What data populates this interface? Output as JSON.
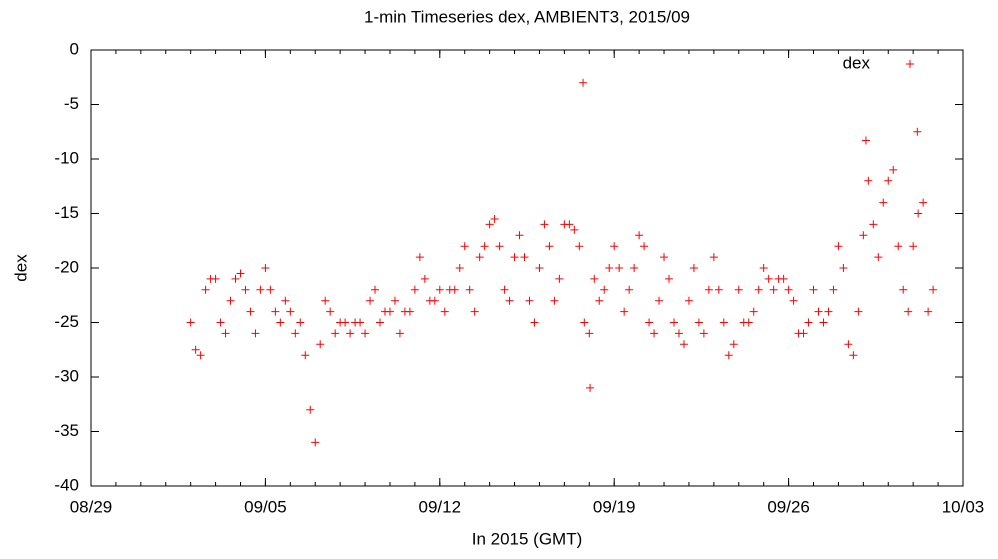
{
  "chart_data": {
    "type": "scatter",
    "title": "1-min Timeseries dex, AMBIENT3, 2015/09",
    "x_label": "In 2015 (GMT)",
    "y_label": "dex",
    "xlim": [
      "2015-08-29T00:00",
      "2015-10-03T00:00"
    ],
    "xticks": [
      {
        "value": "2015-08-29T00:00",
        "label": "08/29"
      },
      {
        "value": "2015-09-05T00:00",
        "label": "09/05"
      },
      {
        "value": "2015-09-12T00:00",
        "label": "09/12"
      },
      {
        "value": "2015-09-19T00:00",
        "label": "09/19"
      },
      {
        "value": "2015-09-26T00:00",
        "label": "09/26"
      },
      {
        "value": "2015-10-03T00:00",
        "label": "10/03"
      }
    ],
    "ylim": [
      -40,
      0
    ],
    "yticks": [
      0,
      -5,
      -10,
      -15,
      -20,
      -25,
      -30,
      -35,
      -40
    ],
    "legend": "upper right",
    "series": [
      {
        "name": "dex",
        "color": "#ff0000",
        "x": [
          "2015-09-02T00:00",
          "2015-09-02T04:48",
          "2015-09-02T09:36",
          "2015-09-02T14:24",
          "2015-09-02T19:12",
          "2015-09-03T00:00",
          "2015-09-03T04:48",
          "2015-09-03T09:36",
          "2015-09-03T14:24",
          "2015-09-03T19:12",
          "2015-09-04T00:00",
          "2015-09-04T04:48",
          "2015-09-04T09:36",
          "2015-09-04T14:24",
          "2015-09-04T19:12",
          "2015-09-05T00:00",
          "2015-09-05T04:48",
          "2015-09-05T09:36",
          "2015-09-05T14:24",
          "2015-09-05T19:12",
          "2015-09-06T00:00",
          "2015-09-06T04:48",
          "2015-09-06T09:36",
          "2015-09-06T14:24",
          "2015-09-06T19:12",
          "2015-09-07T00:00",
          "2015-09-07T04:48",
          "2015-09-07T09:36",
          "2015-09-07T14:24",
          "2015-09-07T19:12",
          "2015-09-08T00:00",
          "2015-09-08T04:48",
          "2015-09-08T09:36",
          "2015-09-08T14:24",
          "2015-09-08T19:12",
          "2015-09-09T00:00",
          "2015-09-09T04:48",
          "2015-09-09T09:36",
          "2015-09-09T14:24",
          "2015-09-09T19:12",
          "2015-09-10T00:00",
          "2015-09-10T04:48",
          "2015-09-10T09:36",
          "2015-09-10T14:24",
          "2015-09-10T19:12",
          "2015-09-11T00:00",
          "2015-09-11T04:48",
          "2015-09-11T09:36",
          "2015-09-11T14:24",
          "2015-09-11T19:12",
          "2015-09-12T00:00",
          "2015-09-12T04:48",
          "2015-09-12T09:36",
          "2015-09-12T14:24",
          "2015-09-12T19:12",
          "2015-09-13T00:00",
          "2015-09-13T04:48",
          "2015-09-13T09:36",
          "2015-09-13T14:24",
          "2015-09-13T19:12",
          "2015-09-14T00:00",
          "2015-09-14T04:48",
          "2015-09-14T09:36",
          "2015-09-14T14:24",
          "2015-09-14T19:12",
          "2015-09-15T00:00",
          "2015-09-15T04:48",
          "2015-09-15T09:36",
          "2015-09-15T14:24",
          "2015-09-15T19:12",
          "2015-09-16T00:00",
          "2015-09-16T04:48",
          "2015-09-16T09:36",
          "2015-09-16T14:24",
          "2015-09-16T19:12",
          "2015-09-17T00:00",
          "2015-09-17T04:48",
          "2015-09-17T09:36",
          "2015-09-17T14:24",
          "2015-09-17T19:12",
          "2015-09-18T00:00",
          "2015-09-18T04:48",
          "2015-09-18T09:36",
          "2015-09-18T14:24",
          "2015-09-18T19:12",
          "2015-09-19T00:00",
          "2015-09-19T04:48",
          "2015-09-19T09:36",
          "2015-09-19T14:24",
          "2015-09-19T19:12",
          "2015-09-20T00:00",
          "2015-09-20T04:48",
          "2015-09-20T09:36",
          "2015-09-20T14:24",
          "2015-09-20T19:12",
          "2015-09-21T00:00",
          "2015-09-21T04:48",
          "2015-09-21T09:36",
          "2015-09-21T14:24",
          "2015-09-21T19:12",
          "2015-09-22T00:00",
          "2015-09-22T04:48",
          "2015-09-22T09:36",
          "2015-09-22T14:24",
          "2015-09-22T19:12",
          "2015-09-23T00:00",
          "2015-09-23T04:48",
          "2015-09-23T09:36",
          "2015-09-23T14:24",
          "2015-09-23T19:12",
          "2015-09-24T00:00",
          "2015-09-24T04:48",
          "2015-09-24T09:36",
          "2015-09-24T14:24",
          "2015-09-24T19:12",
          "2015-09-25T00:00",
          "2015-09-25T04:48",
          "2015-09-25T09:36",
          "2015-09-25T14:24",
          "2015-09-25T19:12",
          "2015-09-26T00:00",
          "2015-09-26T04:48",
          "2015-09-26T09:36",
          "2015-09-26T14:24",
          "2015-09-26T19:12",
          "2015-09-27T00:00",
          "2015-09-27T04:48",
          "2015-09-27T09:36",
          "2015-09-27T14:24",
          "2015-09-27T19:12",
          "2015-09-28T00:00",
          "2015-09-28T04:48",
          "2015-09-28T09:36",
          "2015-09-28T14:24",
          "2015-09-28T19:12",
          "2015-09-29T00:00",
          "2015-09-29T04:48",
          "2015-09-29T09:36",
          "2015-09-29T14:24",
          "2015-09-29T19:12",
          "2015-09-30T00:00",
          "2015-09-30T04:48",
          "2015-09-30T09:36",
          "2015-09-30T14:24",
          "2015-09-30T19:12",
          "2015-10-01T00:00",
          "2015-10-01T04:48",
          "2015-10-01T09:36",
          "2015-10-01T14:24",
          "2015-10-01T19:12",
          "2015-09-17T18:00",
          "2015-10-01T04:00",
          "2015-09-29T02:30",
          "2015-09-18T00:45"
        ],
        "values": [
          -25,
          -27.5,
          -28,
          -22,
          -21,
          -21,
          -25,
          -26,
          -23,
          -21,
          -20.5,
          -22,
          -24,
          -26,
          -22,
          -20,
          -22,
          -24,
          -25,
          -23,
          -24,
          -26,
          -25,
          -28,
          -33,
          -36,
          -27,
          -23,
          -24,
          -26,
          -25,
          -25,
          -26,
          -25,
          -25,
          -26,
          -23,
          -22,
          -25,
          -24,
          -24,
          -23,
          -26,
          -24,
          -24,
          -22,
          -19,
          -21,
          -23,
          -23,
          -22,
          -24,
          -22,
          -22,
          -20,
          -18,
          -22,
          -24,
          -19,
          -18,
          -16,
          -15.5,
          -18,
          -22,
          -23,
          -19,
          -17,
          -19,
          -23,
          -25,
          -20,
          -16,
          -18,
          -23,
          -21,
          -16,
          -16,
          -16.5,
          -18,
          -25,
          -26,
          -21,
          -23,
          -22,
          -20,
          -18,
          -20,
          -24,
          -22,
          -20,
          -17,
          -18,
          -25,
          -26,
          -23,
          -19,
          -21,
          -25,
          -26,
          -27,
          -23,
          -20,
          -25,
          -26,
          -22,
          -19,
          -22,
          -25,
          -28,
          -27,
          -22,
          -25,
          -25,
          -24,
          -22,
          -20,
          -21,
          -22,
          -21,
          -21,
          -22,
          -23,
          -26,
          -26,
          -25,
          -22,
          -24,
          -25,
          -24,
          -22,
          -18,
          -20,
          -27,
          -28,
          -24,
          -17,
          -12,
          -16,
          -19,
          -14,
          -12,
          -11,
          -18,
          -22,
          -24,
          -18,
          -15,
          -14,
          -24,
          -22,
          -3,
          -7.5,
          -8.3,
          -31
        ]
      }
    ]
  }
}
